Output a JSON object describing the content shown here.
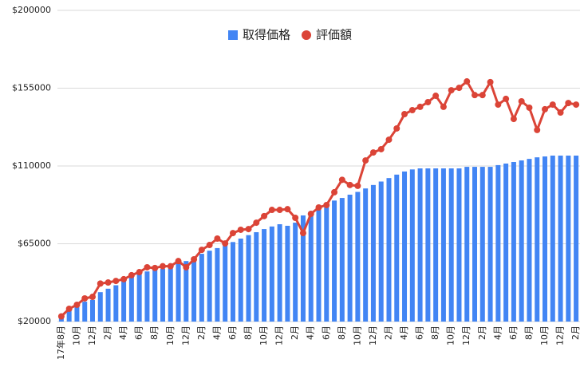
{
  "chart_data": {
    "type": "bar_line",
    "categories": [
      "17年8月",
      null,
      "10月",
      null,
      "12月",
      null,
      "2月",
      null,
      "4月",
      null,
      "6月",
      null,
      "8月",
      null,
      "10月",
      null,
      "12月",
      null,
      "2月",
      null,
      "4月",
      null,
      "6月",
      null,
      "8月",
      null,
      "10月",
      null,
      "12月",
      null,
      "2月",
      null,
      "4月",
      null,
      "6月",
      null,
      "8月",
      null,
      "10月",
      null,
      "12月",
      null,
      "2月",
      null,
      "4月",
      null,
      "6月",
      null,
      "8月",
      null,
      "10月",
      null,
      "12月",
      null,
      "2月",
      null,
      "4月",
      null,
      "6月",
      null,
      "8月",
      null,
      "10月",
      null,
      "12月",
      null,
      "2月"
    ],
    "series": [
      {
        "name": "取得価格",
        "type": "bar",
        "color": "#4285f4",
        "values": [
          23000,
          27000,
          29700,
          31500,
          32500,
          37000,
          39000,
          41000,
          43500,
          46000,
          47700,
          49000,
          50000,
          50500,
          52000,
          53700,
          55000,
          57400,
          59200,
          61000,
          62500,
          64300,
          66000,
          68000,
          70000,
          71700,
          73500,
          75000,
          76300,
          75400,
          77200,
          81400,
          83700,
          86000,
          88300,
          90000,
          91500,
          93400,
          95000,
          97000,
          99000,
          101000,
          103000,
          105000,
          106800,
          108000,
          108600,
          108600,
          108600,
          108600,
          108600,
          108600,
          109500,
          109500,
          109500,
          109500,
          110500,
          111400,
          112300,
          113200,
          114100,
          115000,
          115500,
          116000,
          116000,
          116000,
          116000
        ]
      },
      {
        "name": "評価額",
        "type": "line",
        "color": "#db4437",
        "values": [
          23000,
          27400,
          29700,
          33400,
          34300,
          42000,
          42600,
          43500,
          44500,
          46800,
          48600,
          51400,
          51000,
          52000,
          52000,
          55000,
          51400,
          56000,
          61500,
          64300,
          68000,
          65200,
          71200,
          73100,
          73500,
          77200,
          81000,
          84600,
          84600,
          85000,
          80000,
          71200,
          82300,
          86000,
          87400,
          94800,
          102000,
          99000,
          98500,
          113200,
          117800,
          119700,
          125200,
          131700,
          140000,
          142300,
          144200,
          146900,
          150600,
          144200,
          153800,
          155200,
          158900,
          151000,
          151000,
          158500,
          145500,
          148800,
          137200,
          147400,
          143700,
          130800,
          142800,
          145500,
          140900,
          146400,
          145500
        ]
      }
    ],
    "ylim": [
      20000,
      200000
    ],
    "yticks": [
      {
        "value": 20000,
        "label": "$20000"
      },
      {
        "value": 65000,
        "label": "$65000"
      },
      {
        "value": 110000,
        "label": "$110000"
      },
      {
        "value": 155000,
        "label": "$155000"
      },
      {
        "value": 200000,
        "label": "$200000"
      }
    ],
    "grid": true,
    "legend": "top"
  }
}
